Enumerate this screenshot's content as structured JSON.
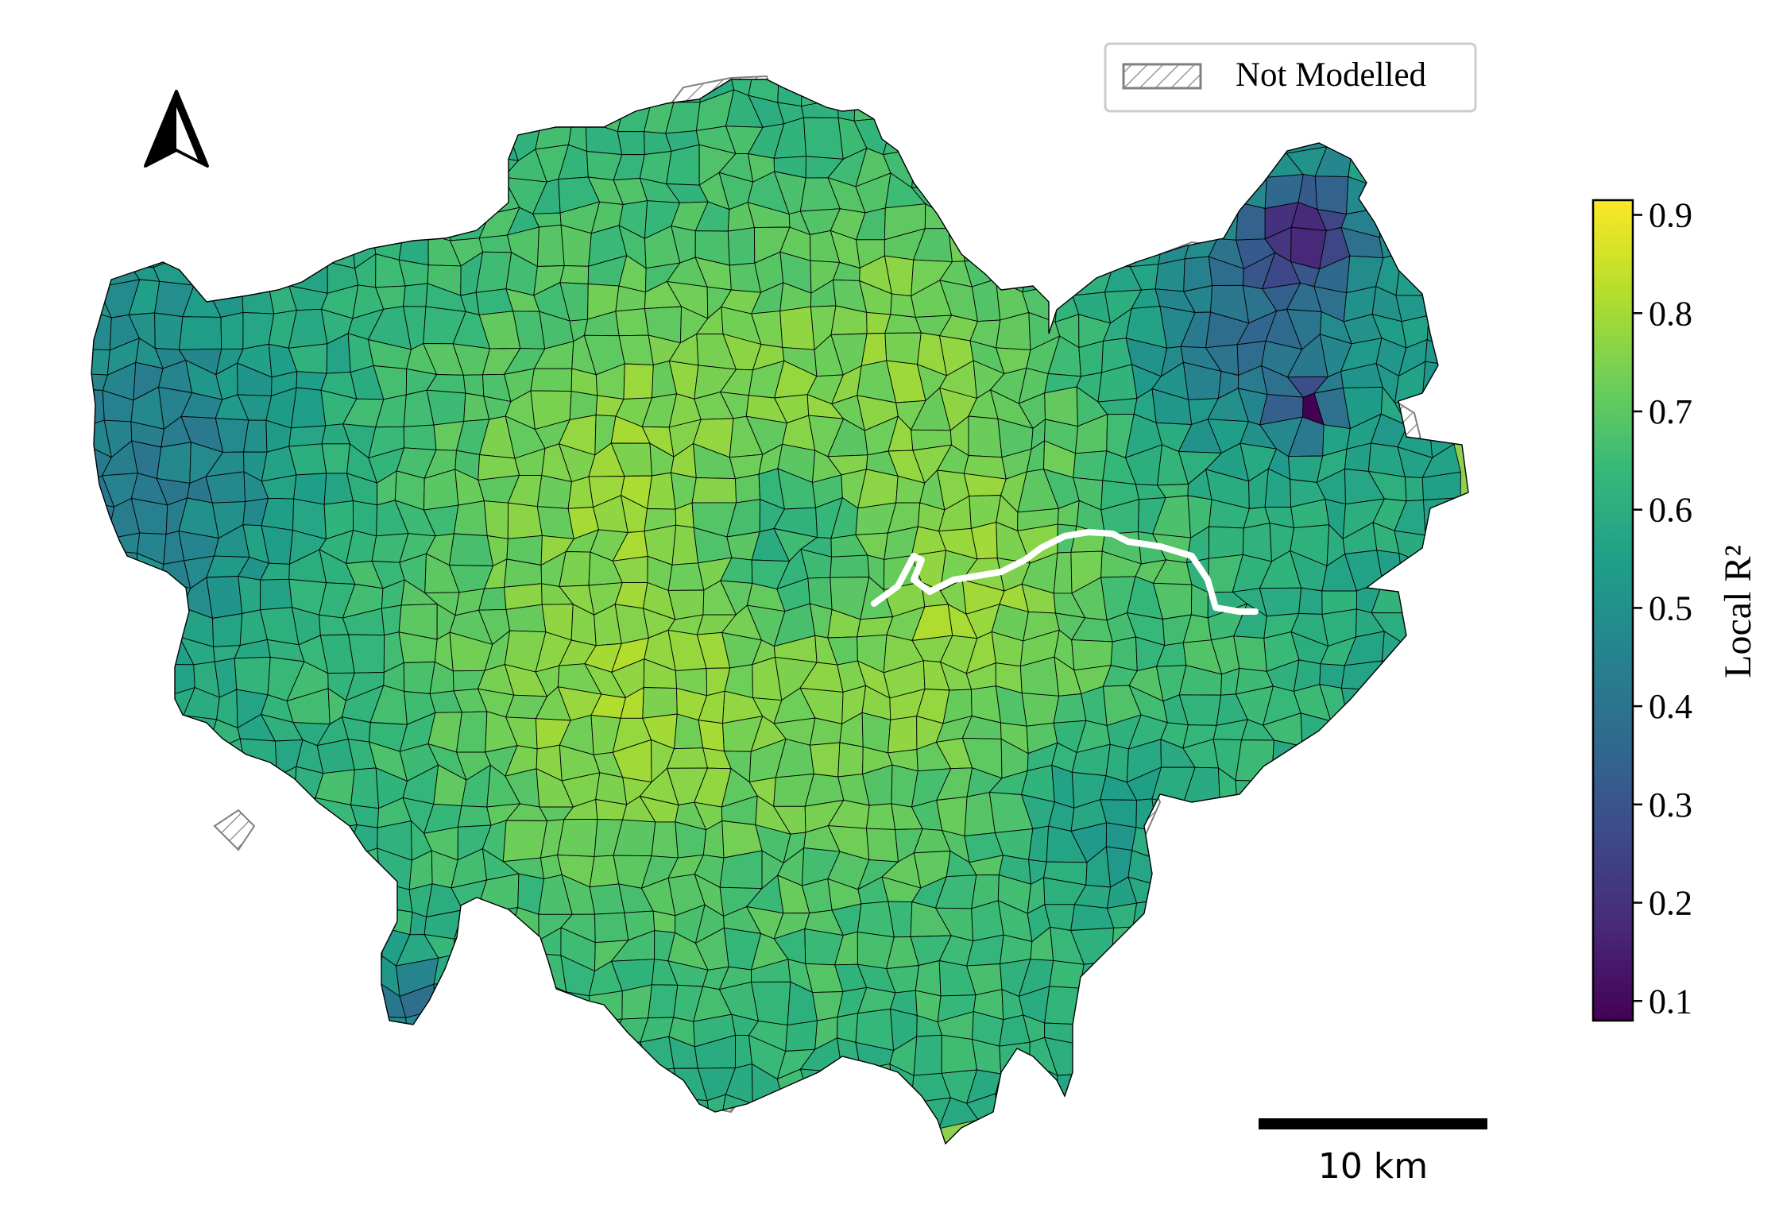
{
  "legend": {
    "hatch_label": "Not Modelled",
    "hatch_color": "#808080"
  },
  "colorbar": {
    "label": "Local R²",
    "colormap": "viridis",
    "range": [
      0.08,
      0.915
    ],
    "ticks": [
      "0.9",
      "0.8",
      "0.7",
      "0.6",
      "0.5",
      "0.4",
      "0.3",
      "0.2",
      "0.1"
    ],
    "tick_values": [
      0.9,
      0.8,
      0.7,
      0.6,
      0.5,
      0.4,
      0.3,
      0.2,
      0.1
    ],
    "stops": [
      "#440154",
      "#482878",
      "#3e4989",
      "#31688e",
      "#26828e",
      "#1f9e89",
      "#35b779",
      "#6ece58",
      "#b5de2b",
      "#fde725"
    ]
  },
  "scalebar": {
    "label": "10 km"
  },
  "north_arrow": {
    "icon": "north-arrow-icon"
  },
  "map": {
    "subject": "Greater London small areas",
    "boundary_color": "#000000",
    "river_color": "#ffffff"
  }
}
